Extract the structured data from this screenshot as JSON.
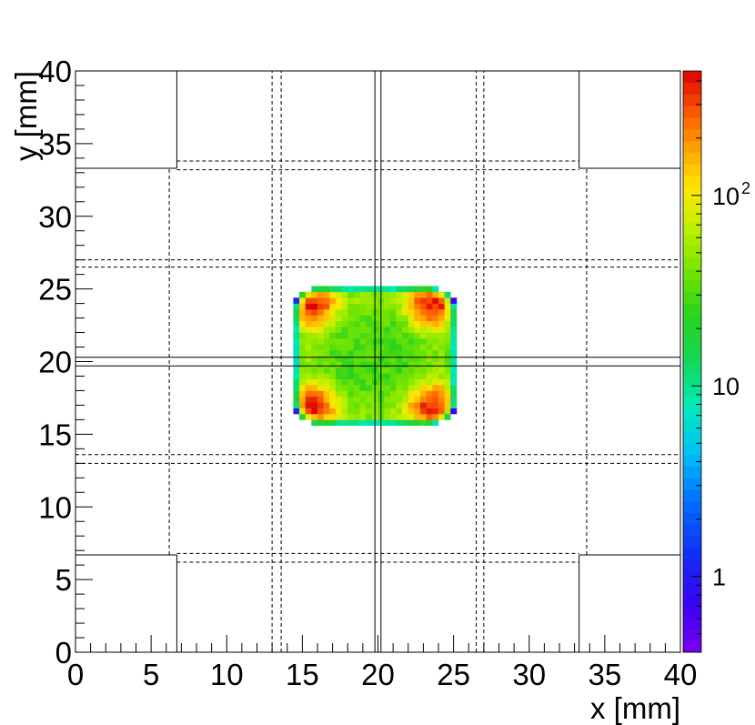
{
  "chart_data": {
    "type": "heatmap",
    "title": "",
    "xlabel": "x [mm]",
    "ylabel": "y [mm]",
    "xlim": [
      0,
      40
    ],
    "ylim": [
      0,
      40
    ],
    "x_ticks": [
      "0",
      "5",
      "10",
      "15",
      "20",
      "25",
      "30",
      "35",
      "40"
    ],
    "y_ticks": [
      "0",
      "5",
      "10",
      "15",
      "20",
      "25",
      "30",
      "35",
      "40"
    ],
    "z_scale": "log",
    "zlim": [
      0.4,
      450
    ],
    "colorbar_ticks": [
      {
        "value": 1,
        "base": "1",
        "exp": ""
      },
      {
        "value": 10,
        "base": "10",
        "exp": ""
      },
      {
        "value": 100,
        "base": "10",
        "exp": "2"
      }
    ],
    "bin_width_mm": 0.4,
    "distribution": {
      "x_range": [
        14.4,
        25.2
      ],
      "y_range": [
        15.6,
        25.2
      ],
      "center_level": 30,
      "edge_level": 60,
      "corner_level": 350,
      "hot_corners": [
        [
          15.6,
          24.0
        ],
        [
          23.6,
          24.0
        ],
        [
          15.6,
          16.8
        ],
        [
          23.6,
          16.8
        ]
      ]
    },
    "solid_lines": {
      "horizontal": [
        {
          "y": 33.3,
          "x": [
            0,
            6.7
          ]
        },
        {
          "y": 33.3,
          "x": [
            33.3,
            40
          ]
        },
        {
          "y": 6.7,
          "x": [
            0,
            6.7
          ]
        },
        {
          "y": 6.7,
          "x": [
            33.3,
            40
          ]
        },
        {
          "y": 20.3,
          "x": [
            0,
            40
          ]
        },
        {
          "y": 19.7,
          "x": [
            0,
            40
          ]
        }
      ],
      "vertical": [
        {
          "x": 6.7,
          "y": [
            33.3,
            40
          ]
        },
        {
          "x": 33.3,
          "y": [
            33.3,
            40
          ]
        },
        {
          "x": 6.7,
          "y": [
            0,
            6.7
          ]
        },
        {
          "x": 33.3,
          "y": [
            0,
            6.7
          ]
        },
        {
          "x": 19.8,
          "y": [
            0,
            40
          ]
        },
        {
          "x": 20.2,
          "y": [
            0,
            40
          ]
        }
      ]
    },
    "dashed_lines": {
      "horizontal": [
        {
          "y": 33.8,
          "x": [
            6.7,
            33.3
          ]
        },
        {
          "y": 33.2,
          "x": [
            6.7,
            33.3
          ]
        },
        {
          "y": 27.0,
          "x": [
            0,
            40
          ]
        },
        {
          "y": 26.5,
          "x": [
            0,
            40
          ]
        },
        {
          "y": 13.6,
          "x": [
            0,
            40
          ]
        },
        {
          "y": 13.0,
          "x": [
            0,
            40
          ]
        },
        {
          "y": 6.8,
          "x": [
            6.7,
            33.3
          ]
        },
        {
          "y": 6.2,
          "x": [
            6.7,
            33.3
          ]
        }
      ],
      "vertical": [
        {
          "x": 13.0,
          "y": [
            0,
            40
          ]
        },
        {
          "x": 13.6,
          "y": [
            0,
            40
          ]
        },
        {
          "x": 26.5,
          "y": [
            0,
            40
          ]
        },
        {
          "x": 27.0,
          "y": [
            0,
            40
          ]
        },
        {
          "x": 6.2,
          "y": [
            6.7,
            33.3
          ]
        },
        {
          "x": 33.8,
          "y": [
            6.7,
            33.3
          ]
        }
      ]
    }
  }
}
